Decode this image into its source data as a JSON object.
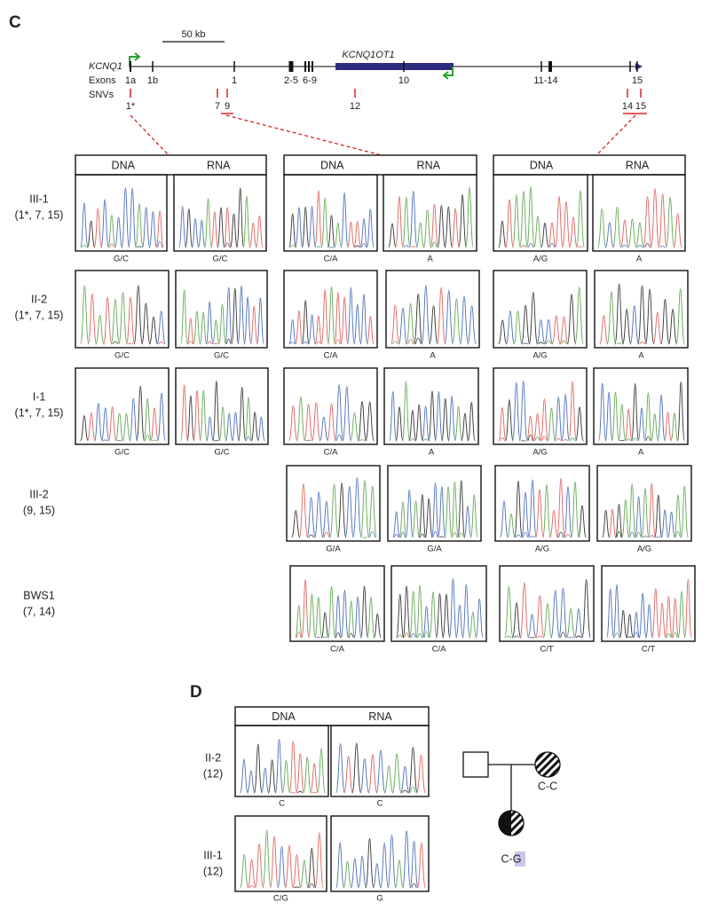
{
  "panel_c": {
    "label": "C",
    "scale_bar": "50 kb",
    "gene": "KCNQ1",
    "antisense_gene": "KCNQ1OT1",
    "exons_label": "Exons",
    "snvs_label": "SNVs",
    "exons": [
      "1a",
      "1b",
      "1",
      "2-5",
      "6-9",
      "10",
      "11-14",
      "15"
    ],
    "snvs": [
      "1*",
      "7",
      "9",
      "12",
      "14",
      "15"
    ],
    "headers": [
      "DNA",
      "RNA"
    ],
    "samples": [
      {
        "name": "III-1",
        "snvs": "(1*, 7, 15)",
        "genotypes": [
          "G/C",
          "G/C",
          "C/A",
          "A",
          "A/G",
          "A"
        ]
      },
      {
        "name": "II-2",
        "snvs": "(1*, 7, 15)",
        "genotypes": [
          "G/C",
          "G/C",
          "C/A",
          "A",
          "A/G",
          "A"
        ]
      },
      {
        "name": "I-1",
        "snvs": "(1*, 7, 15)",
        "genotypes": [
          "G/C",
          "G/C",
          "C/A",
          "A",
          "A/G",
          "A"
        ]
      },
      {
        "name": "III-2",
        "snvs": "(9, 15)",
        "genotypes": [
          "G/A",
          "G/A",
          "A/G",
          "A/G"
        ]
      },
      {
        "name": "BWS1",
        "snvs": "(7, 14)",
        "genotypes": [
          "C/A",
          "C/A",
          "C/T",
          "C/T"
        ]
      }
    ]
  },
  "panel_d": {
    "label": "D",
    "headers": [
      "DNA",
      "RNA"
    ],
    "samples": [
      {
        "name": "II-2",
        "snvs": "(12)",
        "genotypes": [
          "C",
          "C"
        ]
      },
      {
        "name": "III-1",
        "snvs": "(12)",
        "genotypes": [
          "C/G",
          "G"
        ]
      }
    ],
    "pedigree": {
      "mother": "C-C",
      "child": "C-G"
    }
  }
}
